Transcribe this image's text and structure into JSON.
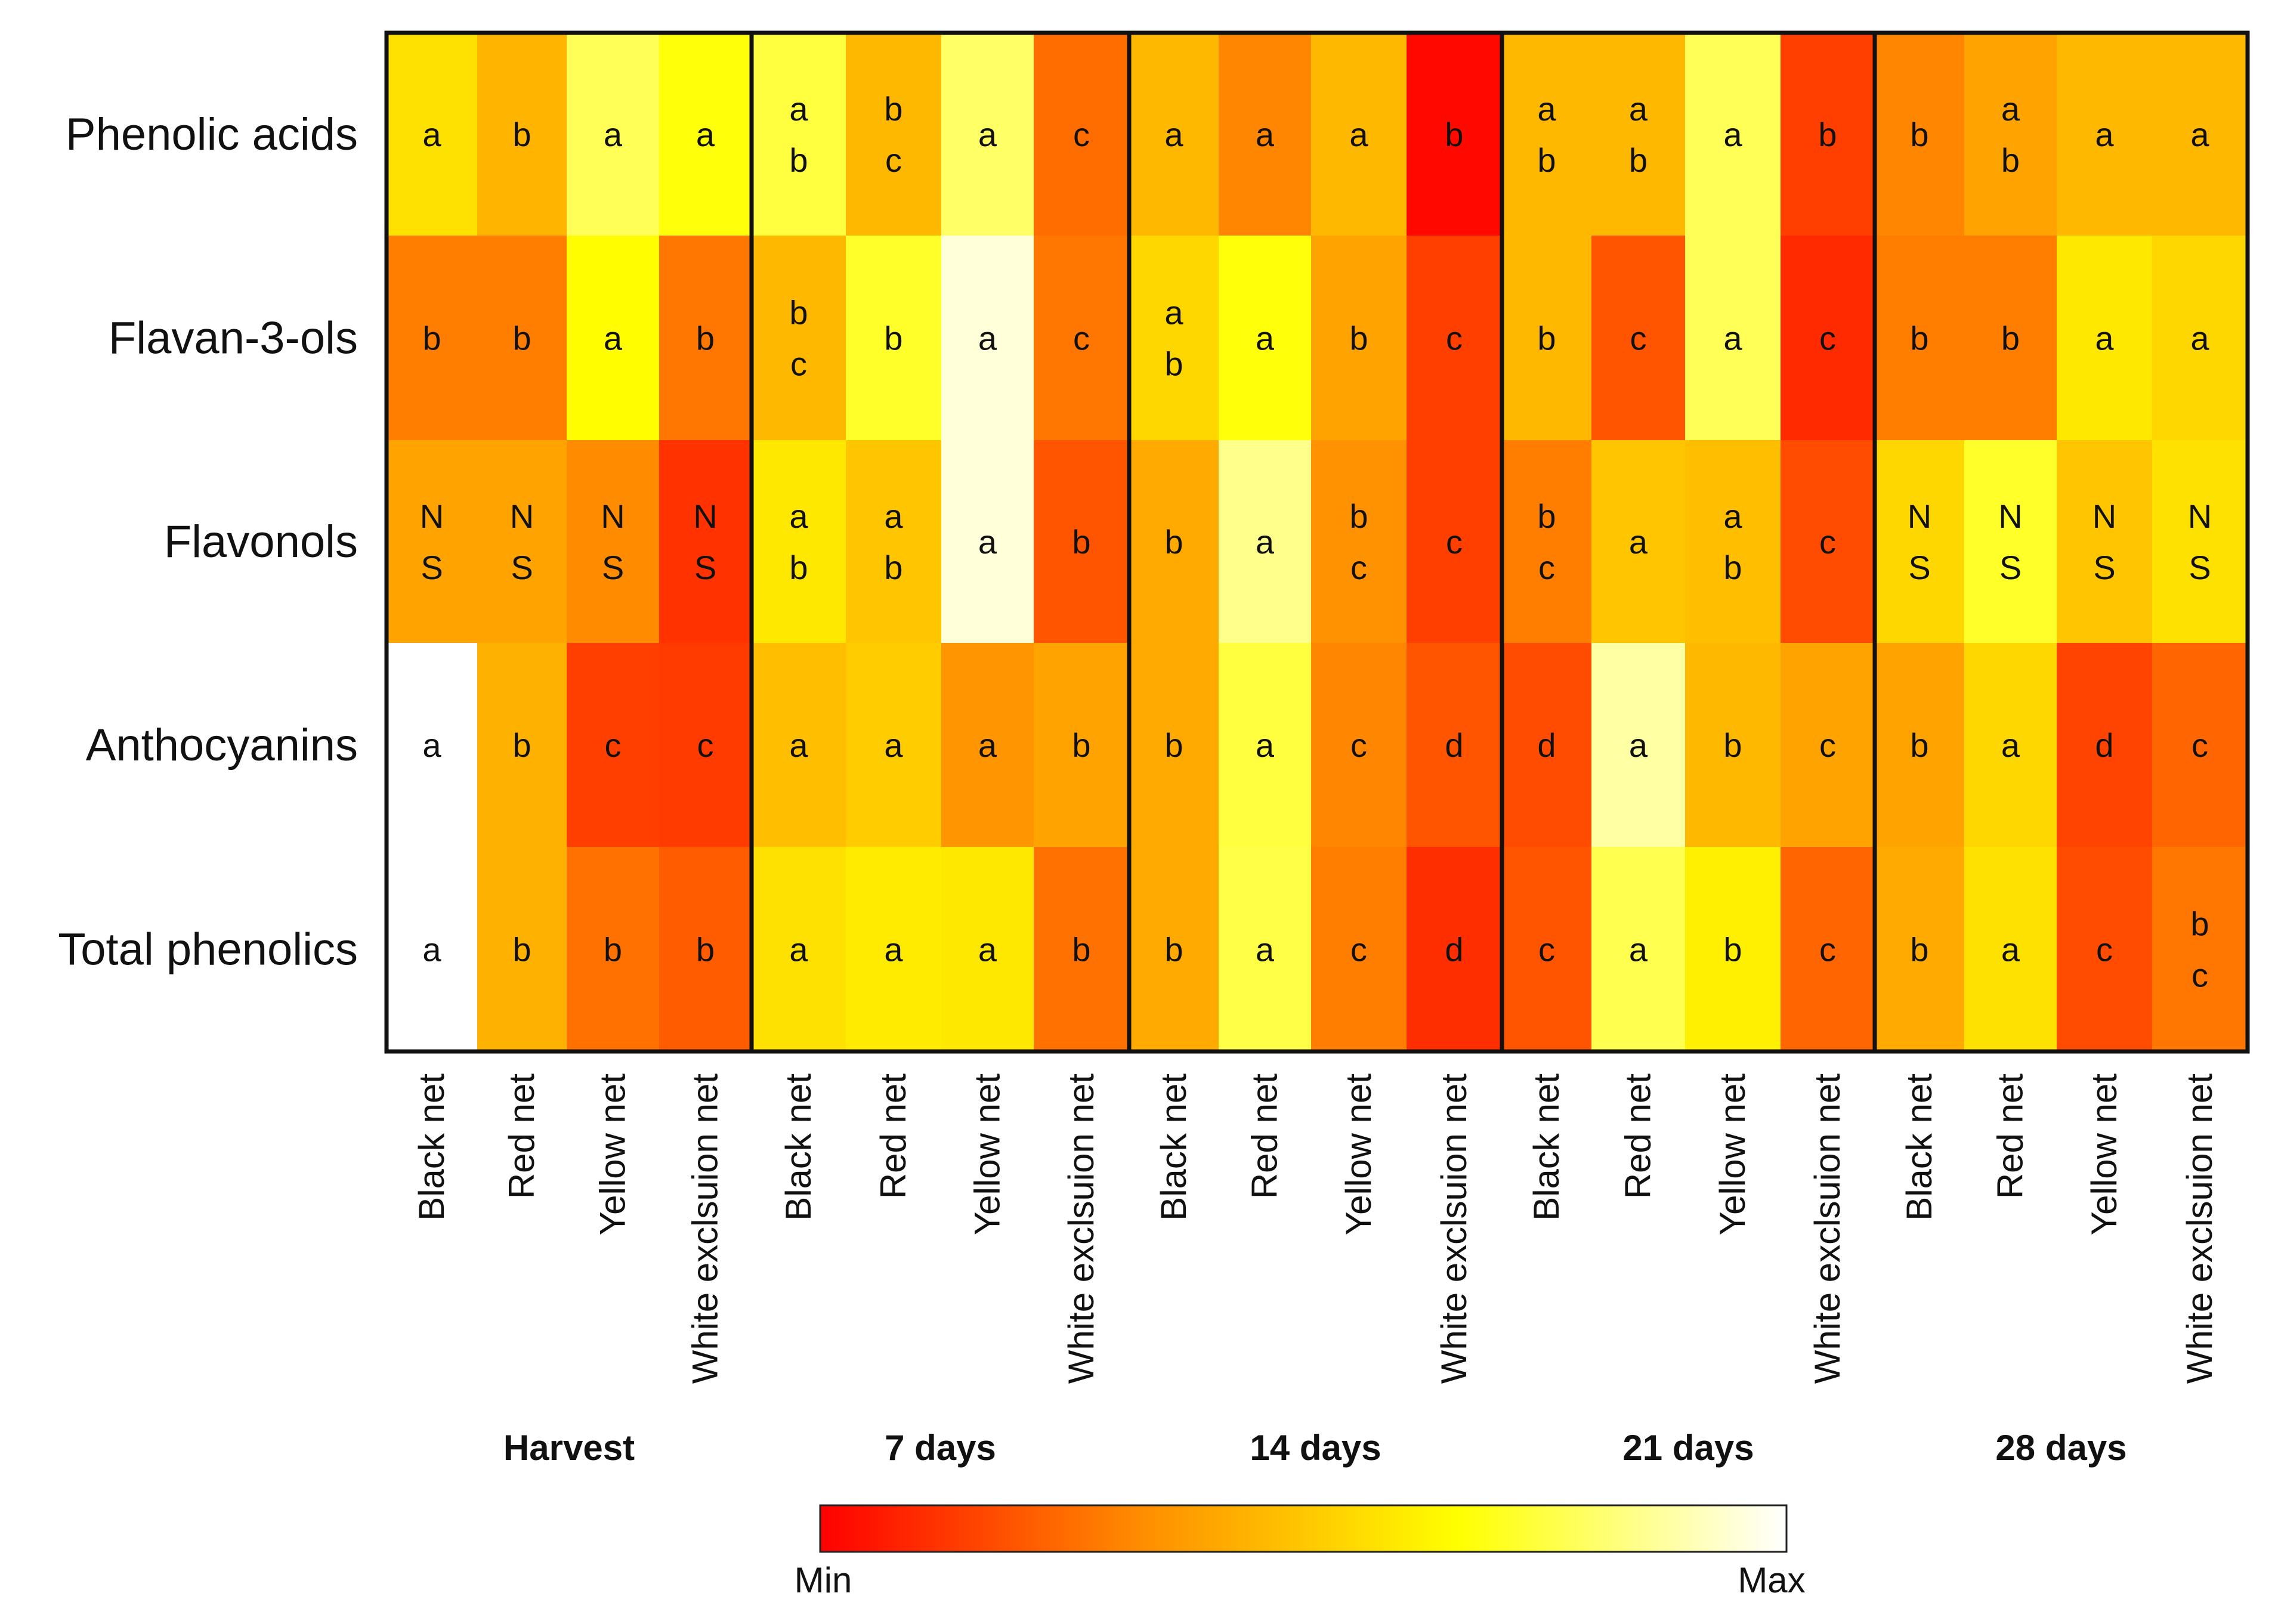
{
  "chart_data": {
    "type": "heatmap",
    "title": "",
    "rows": [
      "Phenolic acids",
      "Flavan-3-ols",
      "Flavonols",
      "Anthocyanins",
      "Total phenolics"
    ],
    "groups": [
      "Harvest",
      "7 days",
      "14 days",
      "21 days",
      "28 days"
    ],
    "treatments": [
      "Black net",
      "Red net",
      "Yellow net",
      "White exclsuion net"
    ],
    "columns": [
      "Black net",
      "Red net",
      "Yellow net",
      "White exclsuion net",
      "Black net",
      "Red net",
      "Yellow net",
      "White exclsuion net",
      "Black net",
      "Red net",
      "Yellow net",
      "White exclsuion net",
      "Black net",
      "Red net",
      "Yellow net",
      "White exclsuion net",
      "Black net",
      "Red net",
      "Yellow net",
      "White exclsuion net"
    ],
    "values": [
      [
        0.58,
        0.45,
        0.78,
        0.68,
        0.75,
        0.46,
        0.8,
        0.26,
        0.46,
        0.32,
        0.46,
        0.02,
        0.46,
        0.46,
        0.78,
        0.15,
        0.32,
        0.4,
        0.46,
        0.46
      ],
      [
        0.3,
        0.3,
        0.66,
        0.28,
        0.46,
        0.72,
        0.95,
        0.28,
        0.55,
        0.68,
        0.4,
        0.15,
        0.46,
        0.2,
        0.78,
        0.1,
        0.3,
        0.3,
        0.6,
        0.55
      ],
      [
        0.4,
        0.4,
        0.33,
        0.12,
        0.6,
        0.5,
        0.95,
        0.2,
        0.42,
        0.85,
        0.35,
        0.15,
        0.3,
        0.5,
        0.48,
        0.18,
        0.55,
        0.72,
        0.5,
        0.58
      ],
      [
        1.0,
        0.44,
        0.15,
        0.14,
        0.48,
        0.52,
        0.36,
        0.4,
        0.42,
        0.75,
        0.32,
        0.2,
        0.18,
        0.88,
        0.46,
        0.4,
        0.4,
        0.55,
        0.16,
        0.24
      ],
      [
        1.0,
        0.44,
        0.27,
        0.22,
        0.58,
        0.61,
        0.6,
        0.27,
        0.42,
        0.76,
        0.3,
        0.11,
        0.2,
        0.77,
        0.62,
        0.24,
        0.42,
        0.58,
        0.18,
        0.28
      ]
    ],
    "letters": [
      [
        "a",
        "b",
        "a",
        "a",
        "a\nb",
        "b\nc",
        "a",
        "c",
        "a",
        "a",
        "a",
        "b",
        "a\nb",
        "a\nb",
        "a",
        "b",
        "b",
        "a\nb",
        "a",
        "a"
      ],
      [
        "b",
        "b",
        "a",
        "b",
        "b\nc",
        "b",
        "a",
        "c",
        "a\nb",
        "a",
        "b",
        "c",
        "b",
        "c",
        "a",
        "c",
        "b",
        "b",
        "a",
        "a"
      ],
      [
        "N\nS",
        "N\nS",
        "N\nS",
        "N\nS",
        "a\nb",
        "a\nb",
        "a",
        "b",
        "b",
        "a",
        "b\nc",
        "c",
        "b\nc",
        "a",
        "a\nb",
        "c",
        "N\nS",
        "N\nS",
        "N\nS",
        "N\nS"
      ],
      [
        "a",
        "b",
        "c",
        "c",
        "a",
        "a",
        "a",
        "b",
        "b",
        "a",
        "c",
        "d",
        "d",
        "a",
        "b",
        "c",
        "b",
        "a",
        "d",
        "c"
      ],
      [
        "a",
        "b",
        "b",
        "b",
        "a",
        "a",
        "a",
        "b",
        "b",
        "a",
        "c",
        "d",
        "c",
        "a",
        "b",
        "c",
        "b",
        "a",
        "c",
        "b\nc"
      ]
    ],
    "color_scale": {
      "min_label": "Min",
      "max_label": "Max",
      "stops": [
        "#ff0000",
        "#ff8c00",
        "#ffff00",
        "#ffffff"
      ]
    }
  }
}
